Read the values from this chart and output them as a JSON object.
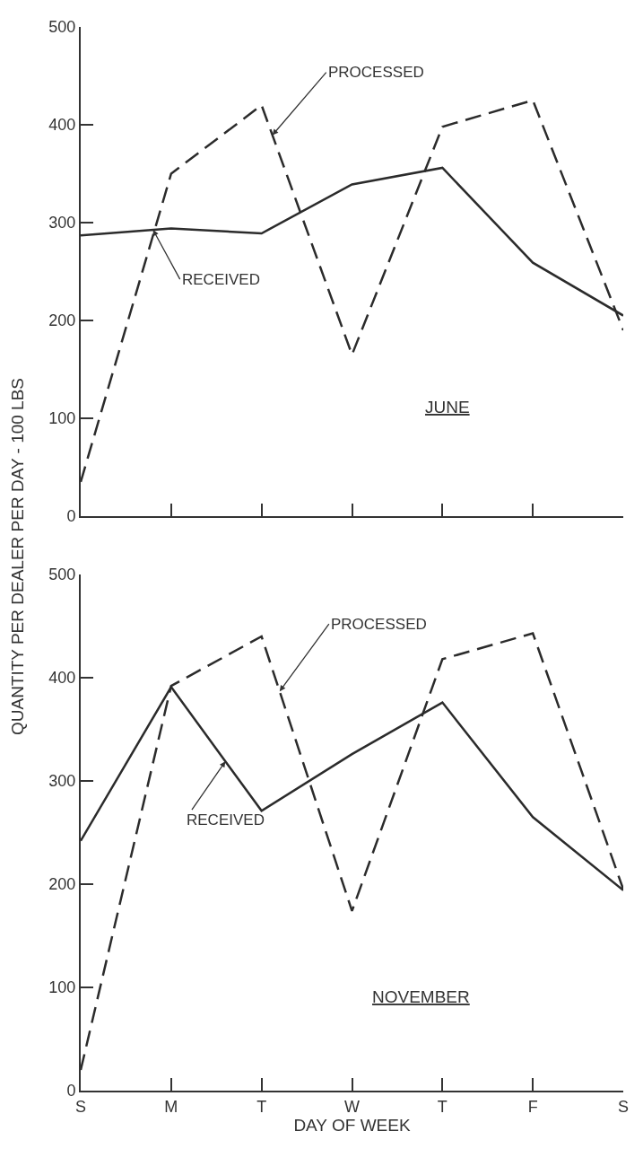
{
  "chart_data": [
    {
      "type": "line",
      "ylabel": "QUANTITY PER DEALER PER DAY - 100 LBS",
      "categories": [
        null,
        null,
        null,
        null,
        null,
        null,
        null
      ],
      "ylim": [
        0,
        500
      ],
      "yticks": [
        0,
        100,
        200,
        300,
        400,
        500
      ],
      "tick_labels": "y",
      "grid": false,
      "legend": false,
      "marker": "none",
      "annotations": [
        "JUNE"
      ],
      "series": [
        {
          "name": "PROCESSED",
          "color": "#2b2b2b",
          "line_style": "dashed",
          "values": [
            35,
            350,
            420,
            165,
            398,
            425,
            190
          ]
        },
        {
          "name": "RECEIVED",
          "color": "#2b2b2b",
          "line_style": "solid",
          "values": [
            287,
            294,
            289,
            339,
            356,
            259,
            205
          ]
        }
      ]
    },
    {
      "type": "line",
      "xlabel": "DAY OF WEEK",
      "categories": [
        "S",
        "M",
        "T",
        "W",
        "T",
        "F",
        "S"
      ],
      "ylim": [
        0,
        500
      ],
      "yticks": [
        0,
        100,
        200,
        300,
        400,
        500
      ],
      "grid": false,
      "legend": false,
      "marker": "none",
      "annotations": [
        "NOVEMBER"
      ],
      "series": [
        {
          "name": "PROCESSED",
          "color": "#2b2b2b",
          "line_style": "dashed",
          "values": [
            20,
            392,
            440,
            174,
            418,
            443,
            195
          ]
        },
        {
          "name": "RECEIVED",
          "color": "#2b2b2b",
          "line_style": "solid",
          "values": [
            242,
            391,
            271,
            326,
            376,
            265,
            194
          ]
        }
      ]
    }
  ]
}
